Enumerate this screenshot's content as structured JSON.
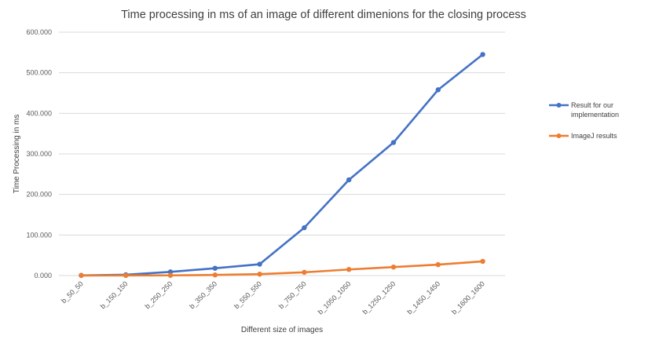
{
  "chart_data": {
    "type": "line",
    "title": "Time processing in ms of an image of different dimenions for the closing process",
    "xlabel": "Different size of images",
    "ylabel": "Time Processing in ms",
    "categories": [
      "b_50_50",
      "b_150_150",
      "b_250_250",
      "b_350_350",
      "b_550_550",
      "b_750_750",
      "b_1050_1050",
      "b_1250_1250",
      "b_1450_1450",
      "b_1600_1600"
    ],
    "ylim": [
      0,
      600
    ],
    "yticks": [
      0,
      100,
      200,
      300,
      400,
      500,
      600
    ],
    "ytick_labels": [
      "0.000",
      "100.000",
      "200.000",
      "300.000",
      "400.000",
      "500.000",
      "600.000"
    ],
    "grid": true,
    "legend_position": "right",
    "series": [
      {
        "name": "Result for our implementation",
        "legend_lines": [
          "Result for our",
          "implementation"
        ],
        "color": "#4472c4",
        "values": [
          0.5,
          2,
          9,
          18,
          28,
          118,
          236,
          328,
          458,
          545
        ]
      },
      {
        "name": "ImageJ results",
        "legend_lines": [
          "ImageJ results"
        ],
        "color": "#ed7d31",
        "values": [
          0.2,
          0.3,
          0.5,
          1.5,
          3.5,
          8,
          15,
          21,
          27,
          35
        ]
      }
    ]
  }
}
